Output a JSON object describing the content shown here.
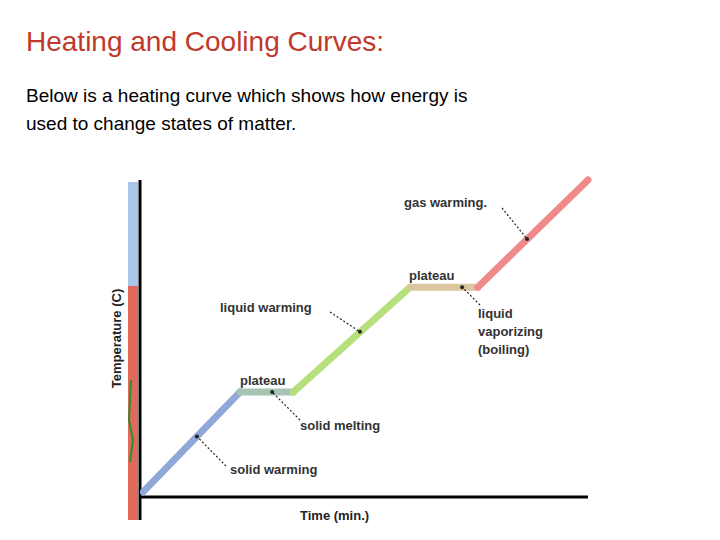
{
  "chart_data": {
    "type": "line",
    "title": "Heating and Cooling Curves:",
    "subtitle": [
      "Below is a heating curve which shows how energy is",
      "used to change states of matter."
    ],
    "x_label": "Time (min.)",
    "y_label": "Temperature (C)",
    "x": [
      0.7,
      22.3,
      34.2,
      60.3,
      75.4,
      100
    ],
    "series": [
      {
        "color": "#8fa8d8",
        "values": [
          1.6,
          33.1,
          null,
          null,
          null,
          null
        ]
      },
      {
        "color": "#a6c4b4",
        "values": [
          null,
          33.1,
          33.1,
          null,
          null,
          null
        ]
      },
      {
        "color": "#b6e07c",
        "values": [
          null,
          null,
          33.1,
          66.2,
          null,
          null
        ]
      },
      {
        "color": "#dcc6a0",
        "values": [
          null,
          null,
          null,
          66.2,
          66.2,
          null
        ]
      },
      {
        "color": "#f08a8a",
        "values": [
          null,
          null,
          null,
          null,
          66.2,
          100
        ]
      }
    ],
    "xlim": [
      0,
      100
    ],
    "ylim": [
      0,
      100
    ],
    "tick_labels": false,
    "grid": false,
    "annotations": [
      {
        "text": "gas warming.",
        "x": 86.4,
        "y": 81.4
      },
      {
        "text": "plateau",
        "x": 67.0,
        "y": 66.2
      },
      {
        "text": "liquid warming",
        "x": 49.1,
        "y": 52.1
      },
      {
        "text": "liquid\nvaporizing\n(boiling)",
        "x": 71.9,
        "y": 66.2
      },
      {
        "text": "plateau",
        "x": 27.2,
        "y": 33.1
      },
      {
        "text": "solid melting",
        "x": 29.5,
        "y": 33.1
      },
      {
        "text": "solid warming",
        "x": 12.7,
        "y": 19.1
      }
    ]
  }
}
